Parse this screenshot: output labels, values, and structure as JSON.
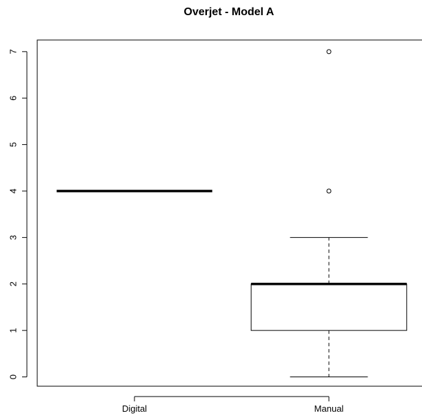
{
  "chart_data": {
    "type": "boxplot",
    "title": "Overjet - Model A",
    "xlabel": "",
    "ylabel": "",
    "categories": [
      "Digital",
      "Manual"
    ],
    "ylim": [
      -0.2,
      7.25
    ],
    "yticks": [
      0,
      1,
      2,
      3,
      4,
      5,
      6,
      7
    ],
    "ytick_labels": [
      "0",
      "1",
      "2",
      "3",
      "4",
      "5",
      "6",
      "7"
    ],
    "boxes": [
      {
        "category": "Digital",
        "whisker_low": 4,
        "q1": 4,
        "median": 4,
        "q3": 4,
        "whisker_high": 4,
        "outliers": []
      },
      {
        "category": "Manual",
        "whisker_low": 0,
        "q1": 1,
        "median": 2,
        "q3": 2,
        "whisker_high": 3,
        "outliers": [
          4,
          7
        ]
      }
    ],
    "grid": false,
    "colors": {
      "box_fill": "#ffffff",
      "stroke": "#000000"
    }
  }
}
